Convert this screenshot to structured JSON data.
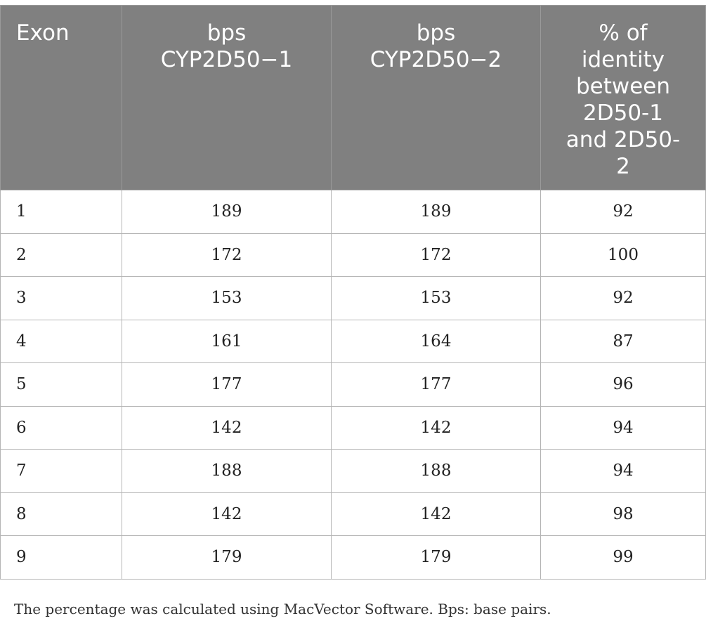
{
  "table": {
    "headers": [
      {
        "lines": [
          "Exon"
        ]
      },
      {
        "lines": [
          "bps",
          "CYP2D50−1"
        ]
      },
      {
        "lines": [
          "bps",
          "CYP2D50−2"
        ]
      },
      {
        "lines": [
          "% of",
          "identity",
          "between",
          "2D50-1",
          "and 2D50-",
          "2"
        ]
      }
    ],
    "rows": [
      [
        "1",
        "189",
        "189",
        "92"
      ],
      [
        "2",
        "172",
        "172",
        "100"
      ],
      [
        "3",
        "153",
        "153",
        "92"
      ],
      [
        "4",
        "161",
        "164",
        "87"
      ],
      [
        "5",
        "177",
        "177",
        "96"
      ],
      [
        "6",
        "142",
        "142",
        "94"
      ],
      [
        "7",
        "188",
        "188",
        "94"
      ],
      [
        "8",
        "142",
        "142",
        "98"
      ],
      [
        "9",
        "179",
        "179",
        "99"
      ]
    ]
  },
  "footnote": "The percentage was calculated using MacVector Software. Bps: base pairs."
}
